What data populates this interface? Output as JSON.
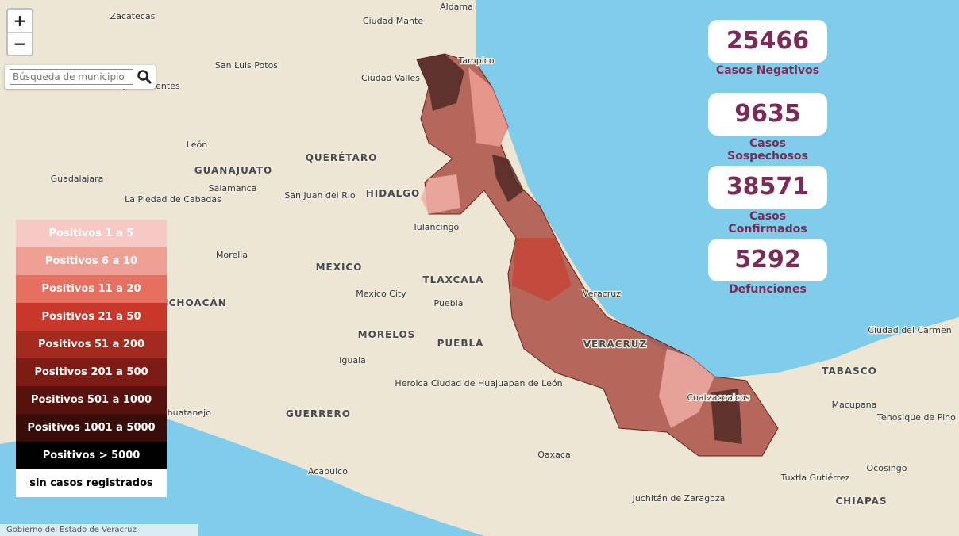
{
  "controls": {
    "zoom_in": "+",
    "zoom_out": "−",
    "search_placeholder": "Búsqueda de municipio"
  },
  "stats": [
    {
      "value": 25466,
      "label": "Casos Negativos"
    },
    {
      "value": 9635,
      "label": "Casos Sospechosos"
    },
    {
      "value": 38571,
      "label": "Casos Confirmados"
    },
    {
      "value": 5292,
      "label": "Defunciones"
    }
  ],
  "legend": [
    {
      "label": "Positivos 1 a 5",
      "color": "#f6c9c4"
    },
    {
      "label": "Positivos 6 a 10",
      "color": "#ef9f94"
    },
    {
      "label": "Positivos 11 a 20",
      "color": "#e6705f"
    },
    {
      "label": "Positivos 21 a 50",
      "color": "#c9372a"
    },
    {
      "label": "Positivos 51 a 200",
      "color": "#a22a1f"
    },
    {
      "label": "Positivos 201 a 500",
      "color": "#7c1c14"
    },
    {
      "label": "Positivos 501 a 1000",
      "color": "#56130d"
    },
    {
      "label": "Positivos 1001 a 5000",
      "color": "#380c08"
    },
    {
      "label": "Positivos > 5000",
      "color": "#000000"
    },
    {
      "label": "sin casos registrados",
      "color": "#ffffff"
    }
  ],
  "places": [
    "Zacatecas",
    "Aldama",
    "Ciudad Mante",
    "Tampico",
    "San Luis Potosi",
    "Ciudad Valles",
    "Aguascalientes",
    "León",
    "GUANAJUATO",
    "QUERÉTARO",
    "Guadalajara",
    "HIDALGO",
    "San Juan del Rio",
    "Salamanca",
    "La Piedad de Cabadas",
    "Tulancingo",
    "Morelia",
    "MÉXICO",
    "TLAXCALA",
    "Mexico City",
    "Puebla",
    "MICHOACÁN",
    "MORELOS",
    "PUEBLA",
    "VERACRUZ",
    "Iguala",
    "Veracruz",
    "GUERRERO",
    "Zihuatanejo",
    "Heroica Ciudad de Huajuapan de León",
    "Oaxaca",
    "Acapulco",
    "Juchitán de Zaragoza",
    "Coatzacoalcos",
    "Ciudad del Carmen",
    "TABASCO",
    "Macupana",
    "Tenosique de Pino Suárez",
    "Ocosingo",
    "Tuxtla Gutiérrez",
    "CHIAPAS"
  ],
  "attribution": "Gobierno del Estado de Veracruz"
}
